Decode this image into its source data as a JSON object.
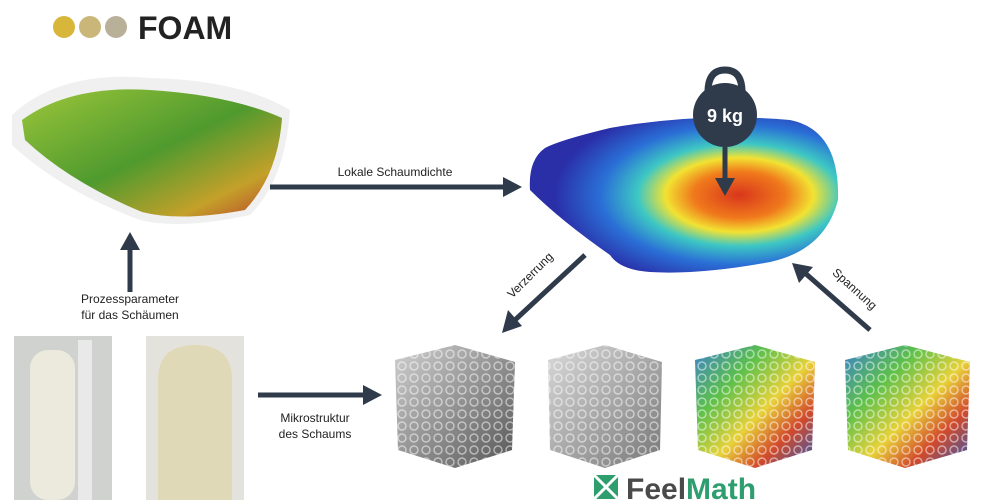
{
  "logo": {
    "text": "FOAM"
  },
  "labels": {
    "density": "Lokale Schaumdichte",
    "process": [
      "Prozessparameter",
      "für das Schäumen"
    ],
    "micro": [
      "Mikrostruktur",
      "des Schaums"
    ],
    "weight": "9 kg",
    "distortion": "Verzerrung",
    "stress": "Spannung"
  },
  "brand": {
    "part1": "Feel",
    "part2": "Math"
  }
}
